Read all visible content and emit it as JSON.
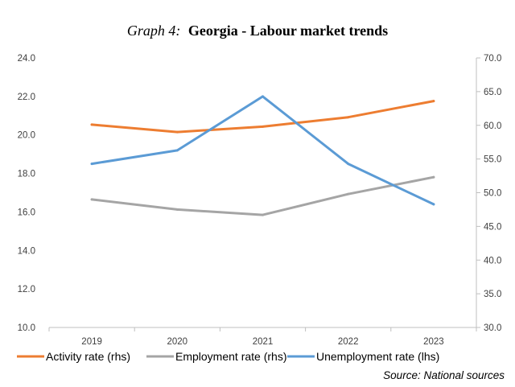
{
  "chart_data": {
    "type": "line",
    "title_prefix": "Graph 4:",
    "title": "Georgia - Labour market trends",
    "categories": [
      "2019",
      "2020",
      "2021",
      "2022",
      "2023"
    ],
    "left_axis": {
      "ylim": [
        10,
        24
      ],
      "ticks": [
        "10.0",
        "12.0",
        "14.0",
        "16.0",
        "18.0",
        "20.0",
        "22.0",
        "24.0"
      ]
    },
    "right_axis": {
      "ylim": [
        30,
        70
      ],
      "ticks": [
        "30.0",
        "35.0",
        "40.0",
        "45.0",
        "50.0",
        "55.0",
        "60.0",
        "65.0",
        "70.0"
      ]
    },
    "series": [
      {
        "name": "Activity rate (rhs)",
        "axis": "right",
        "color": "#ed7d31",
        "values": [
          60.1,
          59.0,
          59.8,
          61.2,
          63.6
        ]
      },
      {
        "name": "Employment rate (rhs)",
        "axis": "right",
        "color": "#a5a5a5",
        "values": [
          49.0,
          47.5,
          46.7,
          49.8,
          52.3
        ]
      },
      {
        "name": "Unemployment rate (lhs)",
        "axis": "left",
        "color": "#5b9bd5",
        "values": [
          18.5,
          19.2,
          22.0,
          18.5,
          16.4
        ]
      }
    ],
    "grid": false,
    "legend_position": "bottom",
    "source": "Source:  National sources"
  }
}
